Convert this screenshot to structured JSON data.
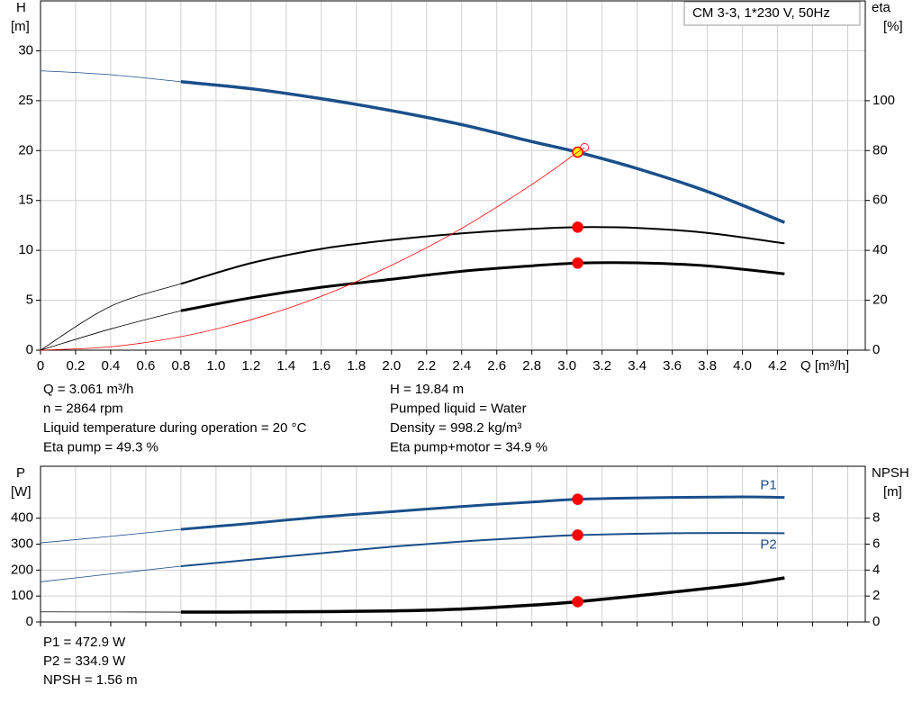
{
  "chart_data": [
    {
      "type": "line",
      "title": "CM 3-3, 1*230 V, 50Hz",
      "x_label": "Q [m³/h]",
      "y_label": [
        "H",
        "[m]"
      ],
      "y2_label": [
        "eta",
        "[%]"
      ],
      "xlim": [
        0,
        4.7
      ],
      "xticks": [
        0,
        0.2,
        0.4,
        0.6,
        0.8,
        {
          "value": 1,
          "label": "1.0"
        },
        1.2,
        1.4,
        1.6,
        1.8,
        {
          "value": 2,
          "label": "2.0"
        },
        2.2,
        2.4,
        2.6,
        2.8,
        {
          "value": 3,
          "label": "3.0"
        },
        3.2,
        3.4,
        3.6,
        3.8,
        {
          "value": 4,
          "label": "4.0"
        },
        4.2,
        {
          "value": 4.4,
          "label": null
        },
        {
          "value": 4.6,
          "label": null
        }
      ],
      "ylim": [
        0,
        35
      ],
      "yticks": [
        0,
        5,
        10,
        15,
        20,
        25,
        30
      ],
      "y2lim": [
        0,
        140
      ],
      "y2ticks": [
        0,
        20,
        40,
        60,
        80,
        100
      ],
      "grid": true,
      "thick_from": 0.8,
      "operating_x": 3.061,
      "series": [
        {
          "color": "#1a4f8b",
          "marker": true,
          "marker_fill": "#ffff00",
          "x": [
            0,
            0.4,
            0.8,
            1.2,
            1.6,
            2.0,
            2.4,
            2.8,
            3.061,
            3.4,
            3.8,
            4.24
          ],
          "values": [
            28,
            27.6,
            26.9,
            26.2,
            25.2,
            24.0,
            22.6,
            20.9,
            19.84,
            18.2,
            15.9,
            12.8
          ]
        },
        {
          "color": "#000000",
          "axis": "y2",
          "marker": true,
          "x": [
            0,
            0.4,
            0.8,
            1.2,
            1.6,
            2.0,
            2.4,
            2.8,
            3.061,
            3.4,
            3.8,
            4.24
          ],
          "values": [
            0,
            17.6,
            26.6,
            34.9,
            40.6,
            44.2,
            46.8,
            48.6,
            49.3,
            49,
            47,
            42.8
          ]
        },
        {
          "color": "#000000",
          "axis": "y2",
          "marker": true,
          "x": [
            0,
            0.4,
            0.8,
            1.2,
            1.6,
            2.0,
            2.4,
            2.8,
            3.061,
            3.4,
            3.8,
            4.24
          ],
          "values": [
            0,
            8.5,
            15.8,
            21,
            25.2,
            28.4,
            31.6,
            33.8,
            34.9,
            35.0,
            33.8,
            30.6
          ]
        },
        {
          "color": "#ff0000",
          "thin": true,
          "end_marker": true,
          "x": [
            0,
            0.4,
            0.8,
            1.2,
            1.6,
            2.0,
            2.4,
            2.8,
            3.061,
            3.1
          ],
          "values": [
            0,
            0.34,
            1.35,
            3.05,
            5.4,
            8.5,
            12.2,
            16.6,
            19.84,
            20.3
          ]
        }
      ]
    },
    {
      "type": "line",
      "y_label": [
        "P",
        "[W]"
      ],
      "y2_label": [
        "NPSH",
        "[m]"
      ],
      "xlim": [
        0,
        4.7
      ],
      "x_tick_labels": false,
      "xticks": [
        0,
        0.2,
        0.4,
        0.6,
        0.8,
        1,
        1.2,
        1.4,
        1.6,
        1.8,
        2,
        2.2,
        2.4,
        2.6,
        2.8,
        3,
        3.2,
        3.4,
        3.6,
        3.8,
        4,
        4.2,
        4.4,
        4.6
      ],
      "ylim": [
        0,
        600
      ],
      "yticks": [
        0,
        100,
        200,
        300,
        400
      ],
      "y2lim": [
        0,
        12
      ],
      "y2ticks": [
        0,
        2,
        4,
        6,
        8
      ],
      "grid": true,
      "thick_from": 0.8,
      "operating_x": 3.061,
      "series": [
        {
          "name": "P1",
          "color": "#1a4f8b",
          "marker": true,
          "x": [
            0,
            0.4,
            0.8,
            1.2,
            1.6,
            2.0,
            2.4,
            2.8,
            3.061,
            3.6,
            4.0,
            4.24
          ],
          "values": [
            305,
            330,
            357,
            380,
            405,
            425,
            445,
            462,
            472.9,
            480,
            482,
            480
          ]
        },
        {
          "name": "P2",
          "color": "#1a4f8b",
          "marker": true,
          "x": [
            0,
            0.4,
            0.8,
            1.2,
            1.6,
            2.0,
            2.4,
            2.8,
            3.061,
            3.6,
            4.0,
            4.24
          ],
          "values": [
            155,
            185,
            215,
            240,
            265,
            290,
            310,
            326,
            334.9,
            342,
            343,
            342
          ]
        },
        {
          "color": "#000000",
          "axis": "y2",
          "marker": true,
          "x": [
            0,
            0.4,
            0.8,
            1.2,
            1.6,
            2.0,
            2.4,
            2.8,
            3.061,
            3.6,
            4.0,
            4.24
          ],
          "values": [
            0.78,
            0.77,
            0.76,
            0.77,
            0.8,
            0.85,
            1.0,
            1.3,
            1.56,
            2.3,
            2.9,
            3.4
          ]
        }
      ]
    }
  ],
  "info": {
    "pump_left": [
      "Q = 3.061 m³/h",
      "n = 2864 rpm",
      "Liquid temperature during operation = 20 °C",
      "Eta pump = 49.3 %"
    ],
    "pump_right": [
      "H = 19.84 m",
      "Pumped liquid = Water",
      "Density = 998.2 kg/m³",
      "Eta pump+motor = 34.9 %"
    ],
    "power": [
      "P1 = 472.9 W",
      "P2 = 334.9 W",
      "NPSH = 1.56 m"
    ]
  }
}
